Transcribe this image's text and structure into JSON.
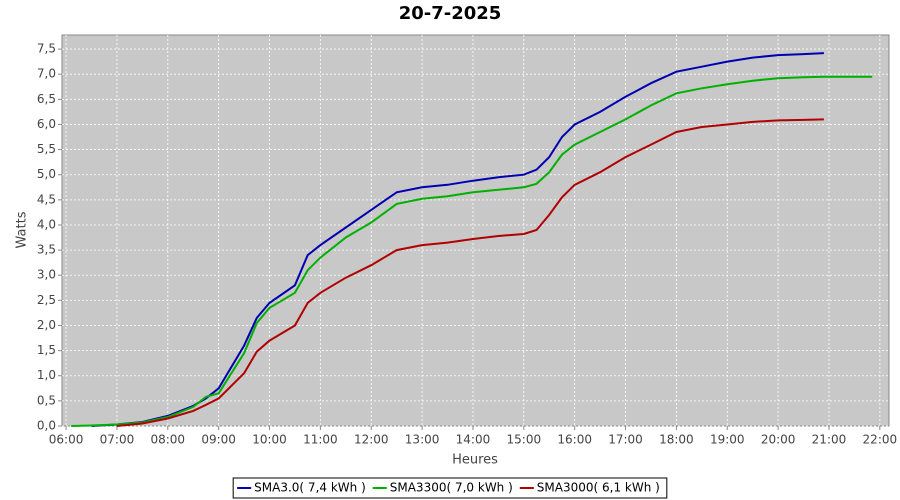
{
  "chart_data": {
    "type": "line",
    "title": "20-7-2025",
    "x_label": "Heures",
    "y_label": "Watts",
    "x": [
      6.1,
      6.5,
      7,
      7.5,
      8,
      8.5,
      8.75,
      9,
      9.5,
      9.75,
      10,
      10.5,
      10.75,
      11,
      11.5,
      12,
      12.5,
      13,
      13.5,
      14,
      14.5,
      15,
      15.25,
      15.5,
      15.75,
      16,
      16.5,
      17,
      17.5,
      18,
      18.5,
      19,
      19.5,
      20,
      20.5,
      20.9,
      21,
      21.85
    ],
    "series": [
      {
        "name": "SMA3.0( 7,4 kWh )",
        "color": "#0000b0",
        "values": [
          null,
          0,
          0.03,
          0.08,
          0.2,
          0.4,
          0.55,
          0.75,
          1.6,
          2.15,
          2.45,
          2.8,
          3.4,
          3.6,
          3.95,
          4.3,
          4.65,
          4.75,
          4.8,
          4.88,
          4.95,
          5.0,
          5.1,
          5.35,
          5.75,
          6.0,
          6.25,
          6.55,
          6.82,
          7.05,
          7.15,
          7.25,
          7.33,
          7.38,
          7.4,
          7.42,
          null,
          null
        ]
      },
      {
        "name": "SMA3300( 7,0 kWh )",
        "color": "#00b000",
        "values": [
          0,
          0.01,
          0.03,
          0.07,
          0.18,
          0.38,
          0.58,
          0.65,
          1.45,
          2.05,
          2.35,
          2.65,
          3.1,
          3.35,
          3.75,
          4.05,
          4.42,
          4.52,
          4.57,
          4.65,
          4.7,
          4.75,
          4.82,
          5.05,
          5.4,
          5.6,
          5.85,
          6.1,
          6.38,
          6.62,
          6.72,
          6.8,
          6.87,
          6.92,
          6.94,
          6.95,
          6.95,
          6.95
        ]
      },
      {
        "name": "SMA3000( 6,1 kWh )",
        "color": "#b00000",
        "values": [
          null,
          null,
          0,
          0.05,
          0.15,
          0.3,
          0.42,
          0.55,
          1.05,
          1.48,
          1.7,
          2.0,
          2.45,
          2.65,
          2.95,
          3.2,
          3.5,
          3.6,
          3.65,
          3.72,
          3.78,
          3.82,
          3.9,
          4.2,
          4.55,
          4.8,
          5.05,
          5.35,
          5.6,
          5.85,
          5.95,
          6.0,
          6.05,
          6.08,
          6.09,
          6.1,
          null,
          null
        ]
      }
    ],
    "xlim": [
      5.92,
      22.18
    ],
    "ylim": [
      0,
      7.78
    ],
    "xticks": [
      {
        "value": 6,
        "label": "06:00"
      },
      {
        "value": 7,
        "label": "07:00"
      },
      {
        "value": 8,
        "label": "08:00"
      },
      {
        "value": 9,
        "label": "09:00"
      },
      {
        "value": 10,
        "label": "10:00"
      },
      {
        "value": 11,
        "label": "11:00"
      },
      {
        "value": 12,
        "label": "12:00"
      },
      {
        "value": 13,
        "label": "13:00"
      },
      {
        "value": 14,
        "label": "14:00"
      },
      {
        "value": 15,
        "label": "15:00"
      },
      {
        "value": 16,
        "label": "16:00"
      },
      {
        "value": 17,
        "label": "17:00"
      },
      {
        "value": 18,
        "label": "18:00"
      },
      {
        "value": 19,
        "label": "19:00"
      },
      {
        "value": 20,
        "label": "20:00"
      },
      {
        "value": 21,
        "label": "21:00"
      },
      {
        "value": 22,
        "label": "22:00"
      }
    ],
    "yticks": [
      {
        "value": 0,
        "label": "0,0"
      },
      {
        "value": 0.5,
        "label": "0,5"
      },
      {
        "value": 1,
        "label": "1,0"
      },
      {
        "value": 1.5,
        "label": "1,5"
      },
      {
        "value": 2,
        "label": "2,0"
      },
      {
        "value": 2.5,
        "label": "2,5"
      },
      {
        "value": 3,
        "label": "3,0"
      },
      {
        "value": 3.5,
        "label": "3,5"
      },
      {
        "value": 4,
        "label": "4,0"
      },
      {
        "value": 4.5,
        "label": "4,5"
      },
      {
        "value": 5,
        "label": "5,0"
      },
      {
        "value": 5.5,
        "label": "5,5"
      },
      {
        "value": 6,
        "label": "6,0"
      },
      {
        "value": 6.5,
        "label": "6,5"
      },
      {
        "value": 7,
        "label": "7,0"
      },
      {
        "value": 7.5,
        "label": "7,5"
      }
    ],
    "grid": true,
    "legend": "bottom"
  }
}
